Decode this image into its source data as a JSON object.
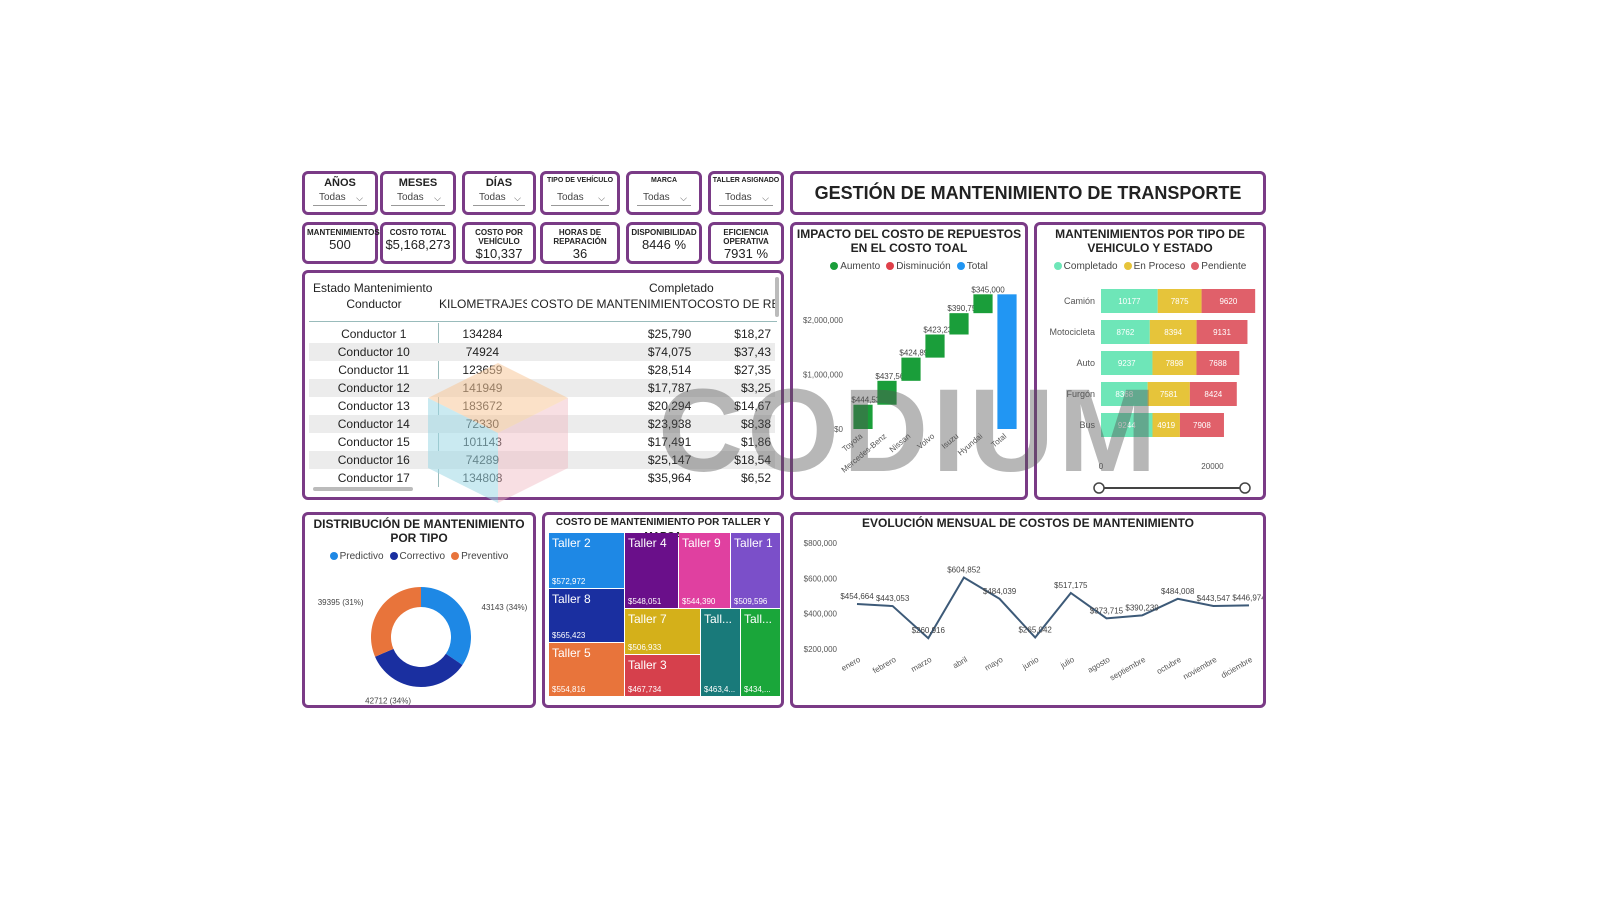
{
  "header": {
    "title": "GESTIÓN DE MANTENIMIENTO DE TRANSPORTE"
  },
  "slicers": [
    {
      "label": "AÑOS",
      "value": "Todas"
    },
    {
      "label": "MESES",
      "value": "Todas"
    },
    {
      "label": "DÍAS",
      "value": "Todas"
    },
    {
      "label": "TIPO DE VEHÍCULO",
      "value": "Todas"
    },
    {
      "label": "MARCA",
      "value": "Todas"
    },
    {
      "label": "TALLER ASIGNADO",
      "value": "Todas"
    }
  ],
  "kpis": [
    {
      "label": "MANTENIMIENTOS",
      "value": "500"
    },
    {
      "label": "COSTO TOTAL",
      "value": "$5,168,273"
    },
    {
      "label": "COSTO POR VEHÍCULO",
      "value": "$10,337"
    },
    {
      "label": "HORAS DE REPARACIÓN",
      "value": "36"
    },
    {
      "label": "DISPONIBILIDAD",
      "value": "8446 %"
    },
    {
      "label": "EFICIENCIA OPERATIVA",
      "value": "7931 %"
    }
  ],
  "matrix": {
    "header_state": "Estado Mantenimiento",
    "header_completed": "Completado",
    "columns": [
      "Conductor",
      "KILOMETRAJES",
      "COSTO DE MANTENIMIENTO",
      "COSTO DE REI"
    ],
    "rows": [
      [
        "Conductor 1",
        "134284",
        "$25,790",
        "$18,27"
      ],
      [
        "Conductor 10",
        "74924",
        "$74,075",
        "$37,43"
      ],
      [
        "Conductor 11",
        "123659",
        "$28,514",
        "$27,35"
      ],
      [
        "Conductor 12",
        "141949",
        "$17,787",
        "$3,25"
      ],
      [
        "Conductor 13",
        "183672",
        "$20,294",
        "$14,67"
      ],
      [
        "Conductor 14",
        "72330",
        "$23,938",
        "$8,38"
      ],
      [
        "Conductor 15",
        "101143",
        "$17,491",
        "$1,86"
      ],
      [
        "Conductor 16",
        "74289",
        "$25,147",
        "$18,54"
      ],
      [
        "Conductor 17",
        "134808",
        "$35,964",
        "$6,52"
      ]
    ]
  },
  "waterfall": {
    "title": "IMPACTO DEL COSTO DE REPUESTOS EN EL COSTO TOAL",
    "legend": [
      {
        "label": "Aumento",
        "color": "#1a9e3a"
      },
      {
        "label": "Disminución",
        "color": "#e0404a"
      },
      {
        "label": "Total",
        "color": "#2196f3"
      }
    ]
  },
  "stacked": {
    "title": "MANTENIMIENTOS POR TIPO DE VEHICULO Y ESTADO",
    "legend": [
      {
        "label": "Completado",
        "color": "#6ee6b8"
      },
      {
        "label": "En Proceso",
        "color": "#e6c43a"
      },
      {
        "label": "Pendiente",
        "color": "#e0606a"
      }
    ]
  },
  "donut": {
    "title": "DISTRIBUCIÓN DE MANTENIMIENTO POR TIPO",
    "legend": [
      {
        "label": "Predictivo",
        "color": "#1e88e5"
      },
      {
        "label": "Correctivo",
        "color": "#1a2fa0"
      },
      {
        "label": "Preventivo",
        "color": "#e8743b"
      }
    ]
  },
  "treemap": {
    "title": "COSTO DE MANTENIMIENTO POR TALLER Y MARCA",
    "cells": [
      {
        "label": "Taller 2",
        "value": "$572,972",
        "color": "#1e88e5"
      },
      {
        "label": "Taller 8",
        "value": "$565,423",
        "color": "#1a2fa0"
      },
      {
        "label": "Taller 5",
        "value": "$554,816",
        "color": "#e8743b"
      },
      {
        "label": "Taller 4",
        "value": "$548,051",
        "color": "#6a0f8a"
      },
      {
        "label": "Taller 9",
        "value": "$544,390",
        "color": "#e040a0"
      },
      {
        "label": "Taller 1",
        "value": "$509,596",
        "color": "#7b4fc9"
      },
      {
        "label": "Taller 7",
        "value": "$506,933",
        "color": "#d4b01a"
      },
      {
        "label": "Taller 3",
        "value": "$467,734",
        "color": "#d6404c"
      },
      {
        "label": "Tall...",
        "value": "$463,4...",
        "color": "#197a7a"
      },
      {
        "label": "Tall...",
        "value": "$434,...",
        "color": "#1aa63a"
      }
    ]
  },
  "line": {
    "title": "EVOLUCIÓN MENSUAL DE COSTOS DE MANTENIMIENTO"
  },
  "chart_data": [
    {
      "type": "bar",
      "subtype": "waterfall",
      "title": "IMPACTO DEL COSTO DE REPUESTOS EN EL COSTO TOAL",
      "categories": [
        "Toyota",
        "Mercedes-Benz",
        "Nissan",
        "Volvo",
        "Isuzu",
        "Hyundai",
        "Total"
      ],
      "values": [
        444533,
        437569,
        424890,
        423238,
        390757,
        345000,
        2466000
      ],
      "value_labels": [
        "$444,533",
        "$437,569",
        "$424,890",
        "$423,238",
        "$390,757",
        "$345,000",
        ""
      ],
      "kinds": [
        "increase",
        "increase",
        "increase",
        "increase",
        "increase",
        "increase",
        "total"
      ],
      "y_ticks": [
        "$0",
        "$1,000,000",
        "$2,000,000"
      ],
      "ylim": [
        0,
        2600000
      ]
    },
    {
      "type": "bar",
      "subtype": "stacked-horizontal",
      "title": "MANTENIMIENTOS POR TIPO DE VEHICULO Y ESTADO",
      "categories": [
        "Camión",
        "Motocicleta",
        "Auto",
        "Furgón",
        "Bus"
      ],
      "series": [
        {
          "name": "Completado",
          "values": [
            10177,
            8762,
            9237,
            8368,
            9244
          ]
        },
        {
          "name": "En Proceso",
          "values": [
            7875,
            8394,
            7898,
            7581,
            4919
          ]
        },
        {
          "name": "Pendiente",
          "values": [
            9620,
            9131,
            7688,
            8424,
            7908
          ]
        }
      ],
      "x_ticks": [
        "0",
        "20000"
      ],
      "xlim": [
        0,
        28000
      ]
    },
    {
      "type": "pie",
      "subtype": "donut",
      "title": "DISTRIBUCIÓN DE MANTENIMIENTO POR TIPO",
      "categories": [
        "Predictivo",
        "Correctivo",
        "Preventivo"
      ],
      "values": [
        43143,
        42712,
        39395
      ],
      "value_labels": [
        "43143 (34%)",
        "42712 (34%)",
        "39395 (31%)"
      ]
    },
    {
      "type": "line",
      "title": "EVOLUCIÓN MENSUAL DE COSTOS DE MANTENIMIENTO",
      "x": [
        "enero",
        "febrero",
        "marzo",
        "abril",
        "mayo",
        "junio",
        "julio",
        "agosto",
        "septiembre",
        "octubre",
        "noviembre",
        "diciembre"
      ],
      "values": [
        454664,
        443053,
        260916,
        604852,
        484039,
        265042,
        517175,
        373715,
        390239,
        484008,
        443547,
        446974
      ],
      "value_labels": [
        "$454,664",
        "$443,053",
        "$260,916",
        "$604,852",
        "$484,039",
        "$265,042",
        "$517,175",
        "$373,715",
        "$390,239",
        "$484,008",
        "$443,547",
        "$446,974"
      ],
      "y_ticks": [
        "$200,000",
        "$400,000",
        "$600,000",
        "$800,000"
      ],
      "ylim": [
        200000,
        800000
      ]
    }
  ],
  "watermark": {
    "text": "CODIUM"
  }
}
